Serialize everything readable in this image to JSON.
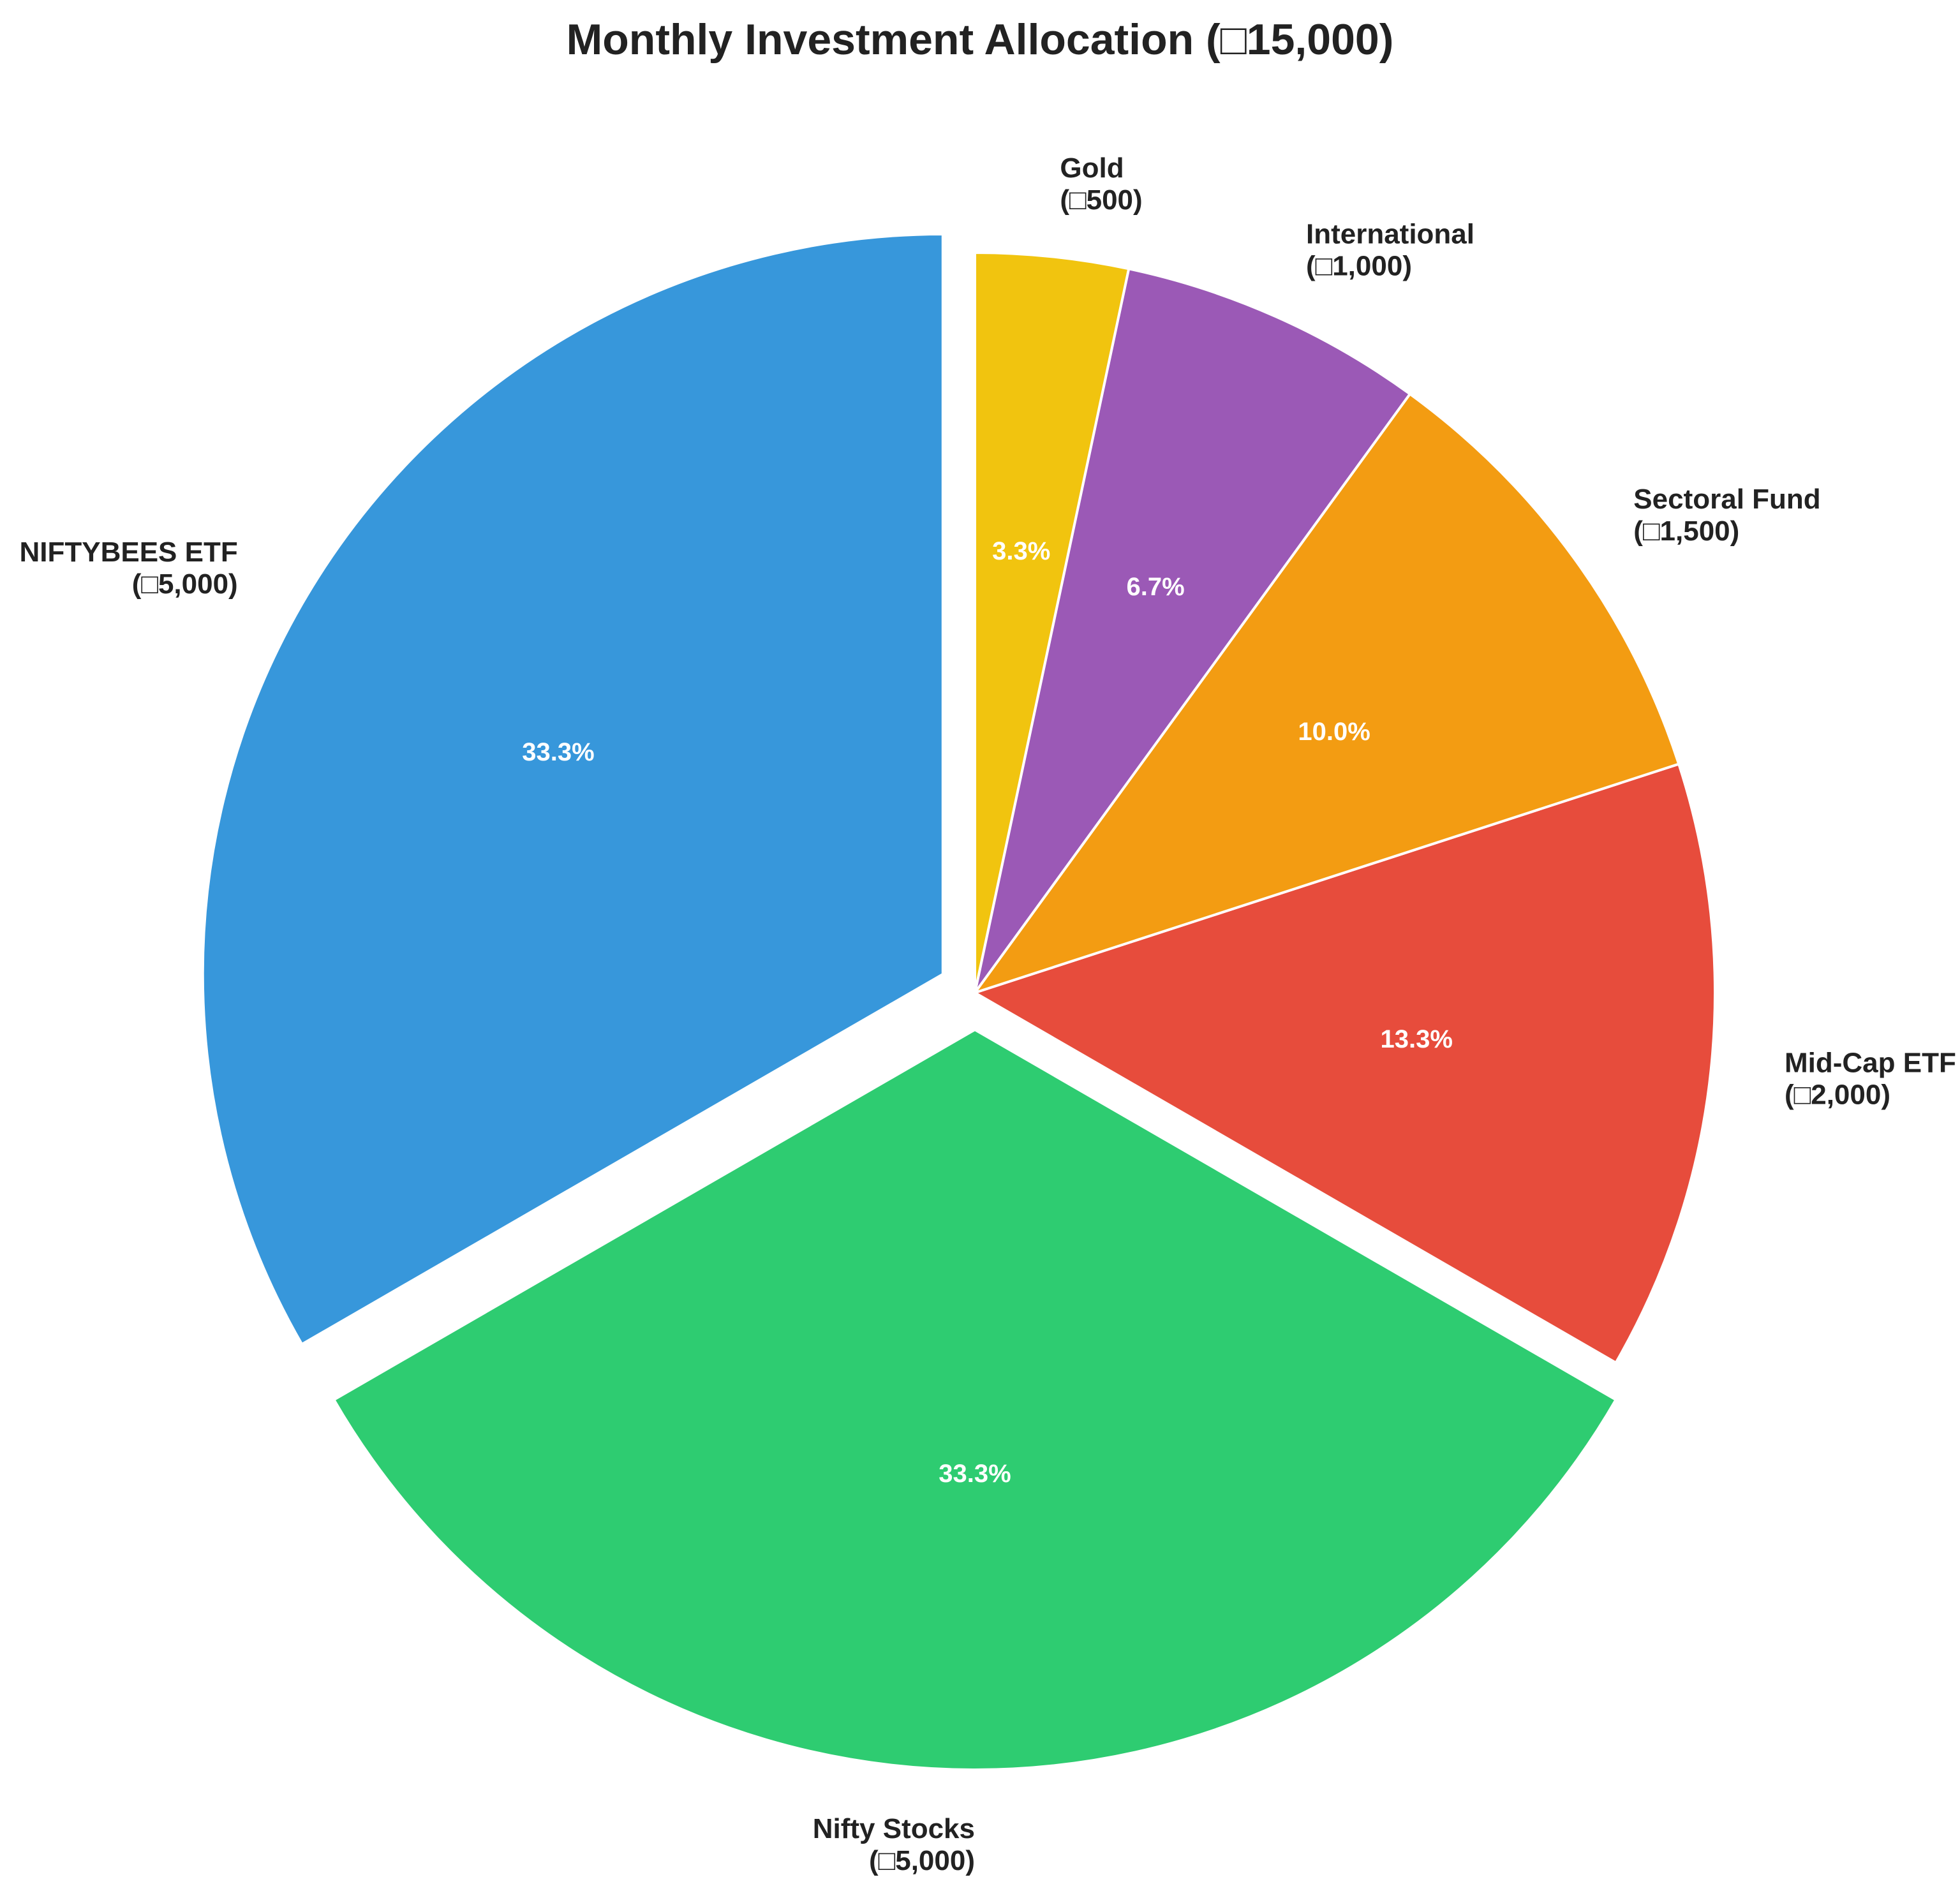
{
  "chart_data": {
    "type": "pie",
    "title": "Monthly Investment Allocation (□15,000)",
    "start_angle": 90,
    "direction": "counterclockwise",
    "slices": [
      {
        "label": "NIFTYBEES ETF",
        "amount_label": "(□5,000)",
        "value": 5000,
        "percent_label": "33.3%",
        "color": "#3797db",
        "explode": true
      },
      {
        "label": "Nifty Stocks",
        "amount_label": "(□5,000)",
        "value": 5000,
        "percent_label": "33.3%",
        "color": "#2ecc71",
        "explode": true
      },
      {
        "label": "Mid-Cap ETF",
        "amount_label": "(□2,000)",
        "value": 2000,
        "percent_label": "13.3%",
        "color": "#e74c3c",
        "explode": false
      },
      {
        "label": "Sectoral Fund",
        "amount_label": "(□1,500)",
        "value": 1500,
        "percent_label": "10.0%",
        "color": "#f39c12",
        "explode": false
      },
      {
        "label": "International",
        "amount_label": "(□1,000)",
        "value": 1000,
        "percent_label": "6.7%",
        "color": "#9b59b6",
        "explode": false
      },
      {
        "label": "Gold",
        "amount_label": "(□500)",
        "value": 500,
        "percent_label": "3.3%",
        "color": "#f1c40f",
        "explode": false
      }
    ]
  }
}
